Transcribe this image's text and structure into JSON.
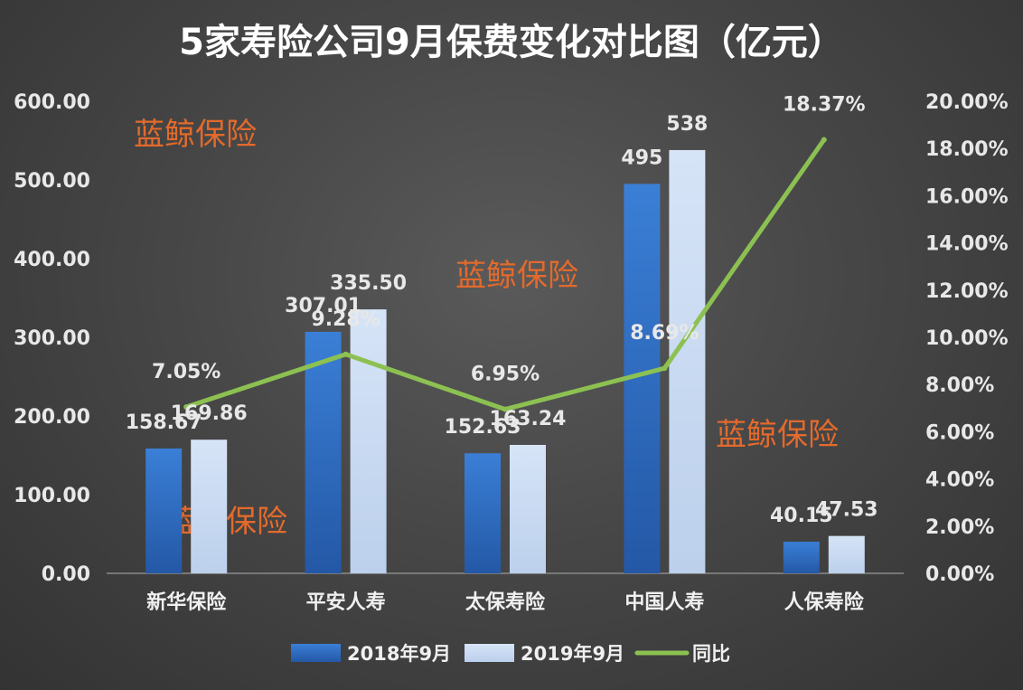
{
  "chart_data": {
    "type": "bar",
    "title": "5家寿险公司9月保费变化对比图（亿元）",
    "categories": [
      "新华保险",
      "平安人寿",
      "太保寿险",
      "中国人寿",
      "人保寿险"
    ],
    "series": [
      {
        "name": "2018年9月",
        "type": "bar",
        "axis": "left",
        "color": "#2e6fc4",
        "values": [
          158.67,
          307.01,
          152.63,
          495,
          40.15
        ],
        "labels": [
          "158.67",
          "307.01",
          "152.63",
          "495",
          "40.15"
        ]
      },
      {
        "name": "2019年9月",
        "type": "bar",
        "axis": "left",
        "color": "#c9daf2",
        "values": [
          169.86,
          335.5,
          163.24,
          538,
          47.53
        ],
        "labels": [
          "169.86",
          "335.50",
          "163.24",
          "538",
          "47.53"
        ]
      },
      {
        "name": "同比",
        "type": "line",
        "axis": "right",
        "color": "#8cc152",
        "values": [
          7.05,
          9.28,
          6.95,
          8.69,
          18.37
        ],
        "labels": [
          "7.05%",
          "9.28%",
          "6.95%",
          "8.69%",
          "18.37%"
        ]
      }
    ],
    "y_left": {
      "lim": [
        0,
        600
      ],
      "ticks": [
        "0.00",
        "100.00",
        "200.00",
        "300.00",
        "400.00",
        "500.00",
        "600.00"
      ]
    },
    "y_right": {
      "lim": [
        0,
        20
      ],
      "ticks": [
        "0.00%",
        "2.00%",
        "4.00%",
        "6.00%",
        "8.00%",
        "10.00%",
        "12.00%",
        "14.00%",
        "16.00%",
        "18.00%",
        "20.00%"
      ]
    },
    "grid": false,
    "legend_position": "bottom",
    "watermark_text": "蓝鲸保险"
  }
}
